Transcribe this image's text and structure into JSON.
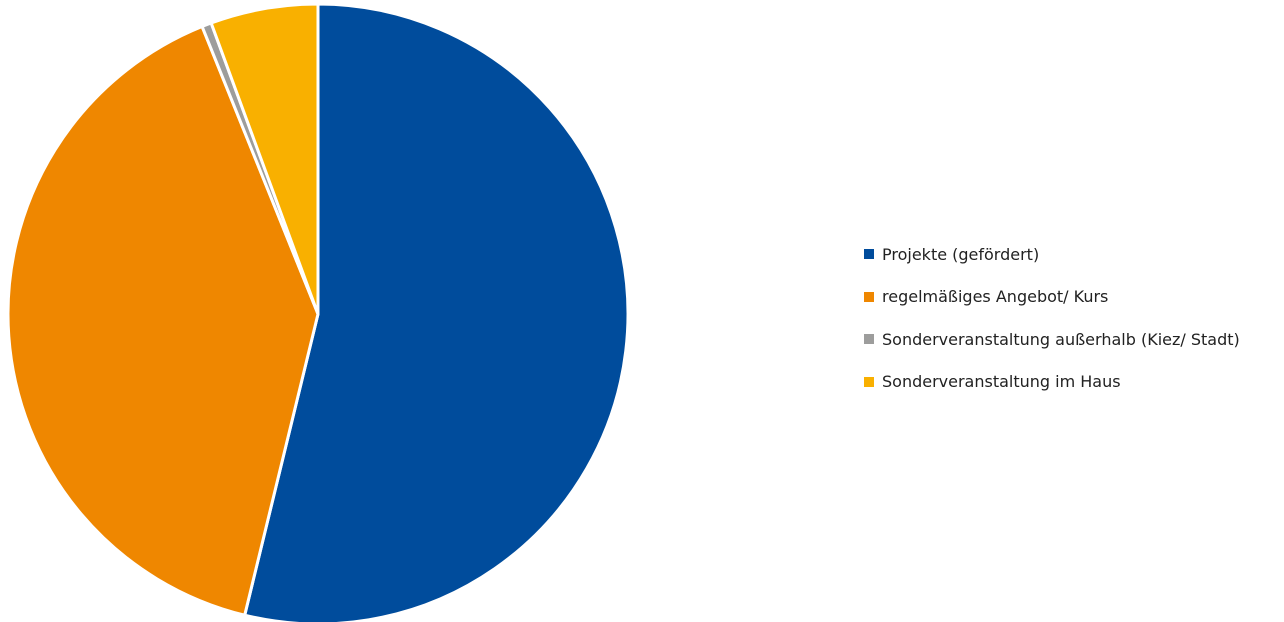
{
  "chart_data": {
    "type": "pie",
    "title": "",
    "series": [
      {
        "name": "Projekte (gefördert)",
        "value": 53.8,
        "color": "#004c9c"
      },
      {
        "name": "regelmäßiges Angebot/ Kurs",
        "value": 40.1,
        "color": "#ef8700"
      },
      {
        "name": "Sonderveranstaltung außerhalb (Kiez/ Stadt)",
        "value": 0.5,
        "color": "#9d9d9c"
      },
      {
        "name": "Sonderveranstaltung im Haus",
        "value": 5.6,
        "color": "#f9b000"
      }
    ],
    "start_angle_degrees": 0,
    "direction": "clockwise",
    "legend_position": "right"
  }
}
